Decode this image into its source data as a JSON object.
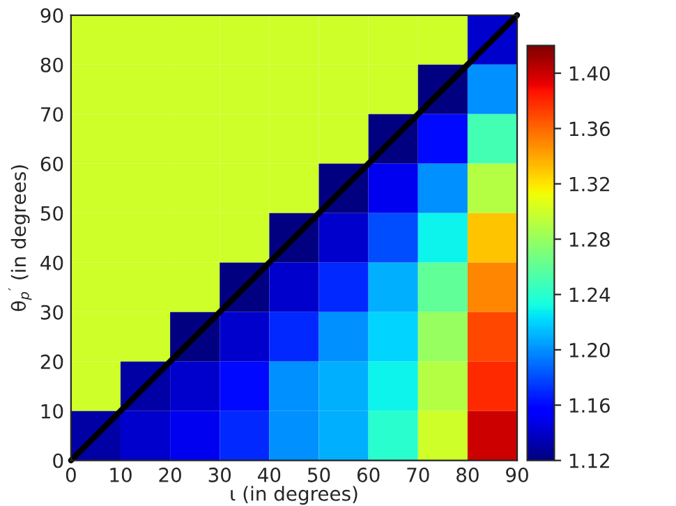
{
  "chart_data": {
    "type": "heatmap",
    "xlabel": "ι (in degrees)",
    "ylabel": "θ$_{p}$$^{′}$ (in degrees)",
    "x": [
      5,
      15,
      25,
      35,
      45,
      55,
      65,
      75,
      85
    ],
    "y": [
      85,
      75,
      65,
      55,
      45,
      35,
      25,
      15,
      5
    ],
    "cells": [
      [
        1.3,
        1.3,
        1.3,
        1.3,
        1.3,
        1.3,
        1.3,
        1.3,
        1.14
      ],
      [
        1.3,
        1.3,
        1.3,
        1.3,
        1.3,
        1.3,
        1.3,
        1.12,
        1.2
      ],
      [
        1.3,
        1.3,
        1.3,
        1.3,
        1.3,
        1.3,
        1.12,
        1.16,
        1.25
      ],
      [
        1.3,
        1.3,
        1.3,
        1.3,
        1.3,
        1.12,
        1.15,
        1.2,
        1.29
      ],
      [
        1.3,
        1.3,
        1.3,
        1.3,
        1.12,
        1.14,
        1.18,
        1.23,
        1.33
      ],
      [
        1.3,
        1.3,
        1.3,
        1.12,
        1.14,
        1.17,
        1.21,
        1.26,
        1.35
      ],
      [
        1.3,
        1.3,
        1.12,
        1.14,
        1.17,
        1.2,
        1.22,
        1.28,
        1.37
      ],
      [
        1.3,
        1.13,
        1.14,
        1.16,
        1.2,
        1.21,
        1.23,
        1.29,
        1.38
      ],
      [
        1.13,
        1.14,
        1.15,
        1.17,
        1.2,
        1.21,
        1.24,
        1.3,
        1.4
      ]
    ],
    "xlim": [
      0,
      90
    ],
    "xticks": [
      0,
      10,
      20,
      30,
      40,
      50,
      60,
      70,
      80,
      90
    ],
    "ylim": [
      0,
      90
    ],
    "yticks": [
      0,
      10,
      20,
      30,
      40,
      50,
      60,
      70,
      80,
      90
    ],
    "clim": [
      1.12,
      1.42
    ],
    "cticks": [
      1.12,
      1.16,
      {
        "value": 1.2,
        "label": "1.20"
      },
      1.24,
      1.28,
      1.32,
      1.36,
      {
        "value": 1.4,
        "label": "1.40"
      }
    ],
    "series": [
      {
        "type": "line",
        "color": "#000000",
        "x": [
          0,
          90
        ],
        "values": [
          0,
          90
        ]
      }
    ]
  }
}
